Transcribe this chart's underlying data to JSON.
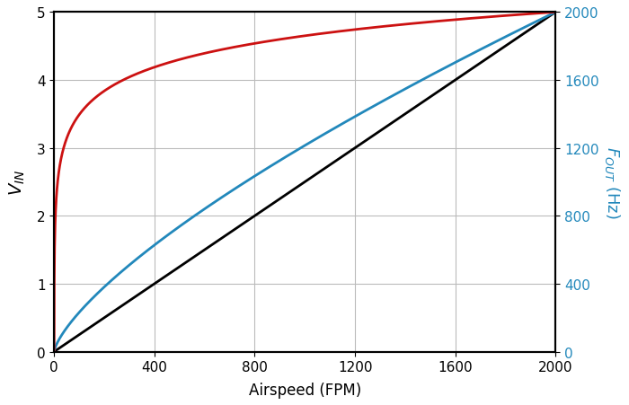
{
  "x_min": 0,
  "x_max": 2000,
  "y_left_min": 0,
  "y_left_max": 5,
  "y_right_min": 0,
  "y_right_max": 2000,
  "x_ticks": [
    0,
    400,
    800,
    1200,
    1600,
    2000
  ],
  "y_left_ticks": [
    0,
    1,
    2,
    3,
    4,
    5
  ],
  "y_right_ticks": [
    0,
    400,
    800,
    1200,
    1600,
    2000
  ],
  "xlabel": "Airspeed (FPM)",
  "ylabel_left": "$V_{IN}$",
  "ylabel_right": "$F_{OUT}$ (Hz)",
  "line_black_color": "#000000",
  "line_red_color": "#cc1111",
  "line_blue_color": "#2288bb",
  "background_color": "#ffffff",
  "grid_color": "#bbbbbb",
  "linewidth": 2.0,
  "k_red": 10.0,
  "blue_power": 0.72,
  "fig_width": 7.0,
  "fig_height": 4.52,
  "dpi": 100
}
